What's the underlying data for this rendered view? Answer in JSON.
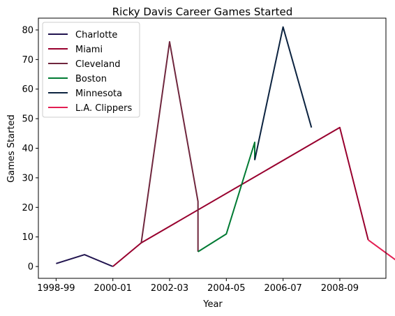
{
  "chart_data": {
    "type": "line",
    "title": "Ricky Davis Career Games Started",
    "xlabel": "Year",
    "ylabel": "Games Started",
    "x_ticks": [
      "1998-99",
      "2000-01",
      "2002-03",
      "2004-05",
      "2006-07",
      "2008-09"
    ],
    "y_ticks": [
      0,
      10,
      20,
      30,
      40,
      50,
      60,
      70,
      80
    ],
    "xlim": [
      -0.625,
      11.625
    ],
    "ylim": [
      -4,
      84
    ],
    "grid": false,
    "legend_position": "top-left",
    "series": [
      {
        "name": "Charlotte",
        "color": "#20134e",
        "points": [
          [
            0,
            1
          ],
          [
            1,
            4
          ],
          [
            2,
            0
          ]
        ]
      },
      {
        "name": "Miami",
        "color": "#98002e",
        "points": [
          [
            2,
            0
          ],
          [
            3,
            8
          ],
          [
            10,
            47
          ],
          [
            11,
            9
          ]
        ]
      },
      {
        "name": "Cleveland",
        "color": "#6f263d",
        "points": [
          [
            3,
            8
          ],
          [
            4,
            76
          ],
          [
            5,
            22
          ],
          [
            5,
            5
          ]
        ]
      },
      {
        "name": "Boston",
        "color": "#007a33",
        "points": [
          [
            5,
            5
          ],
          [
            6,
            11
          ],
          [
            7,
            42
          ],
          [
            7,
            36
          ]
        ]
      },
      {
        "name": "Minnesota",
        "color": "#0c2340",
        "points": [
          [
            7,
            36
          ],
          [
            8,
            81
          ],
          [
            9,
            47
          ]
        ]
      },
      {
        "name": "L.A. Clippers",
        "color": "#e31e52",
        "points": [
          [
            11,
            9
          ],
          [
            12,
            2
          ]
        ]
      }
    ]
  }
}
